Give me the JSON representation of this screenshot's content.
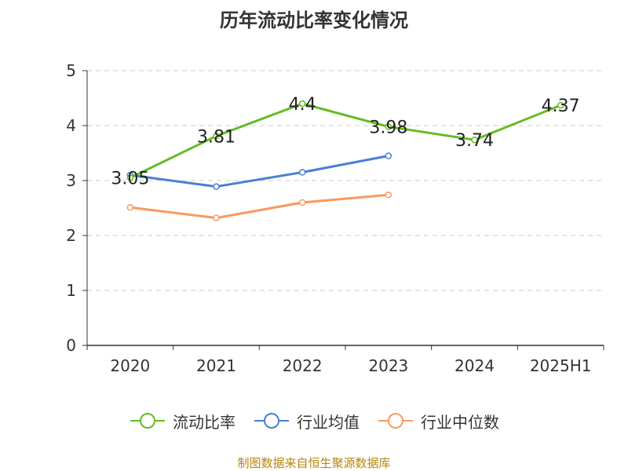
{
  "chart_data": {
    "type": "line",
    "title": "历年流动比率变化情况",
    "categories": [
      "2020",
      "2021",
      "2022",
      "2023",
      "2024",
      "2025H1"
    ],
    "y_ticks": [
      "0",
      "1",
      "2",
      "3",
      "4",
      "5"
    ],
    "ylim": [
      0,
      5
    ],
    "grid": "horizontal-dashed",
    "legend_position": "bottom",
    "series": [
      {
        "name": "流动比率",
        "color": "#66bb22",
        "values": [
          3.05,
          3.81,
          4.4,
          3.98,
          3.74,
          4.37
        ],
        "labels": [
          "3.05",
          "3.81",
          "4.4",
          "3.98",
          "3.74",
          "4.37"
        ]
      },
      {
        "name": "行业均值",
        "color": "#4a7fd4",
        "values": [
          3.1,
          2.89,
          3.15,
          3.45,
          null,
          null
        ]
      },
      {
        "name": "行业中位数",
        "color": "#f79a5f",
        "values": [
          2.51,
          2.32,
          2.6,
          2.74,
          null,
          null
        ]
      }
    ]
  },
  "source_note": "制图数据来自恒生聚源数据库"
}
